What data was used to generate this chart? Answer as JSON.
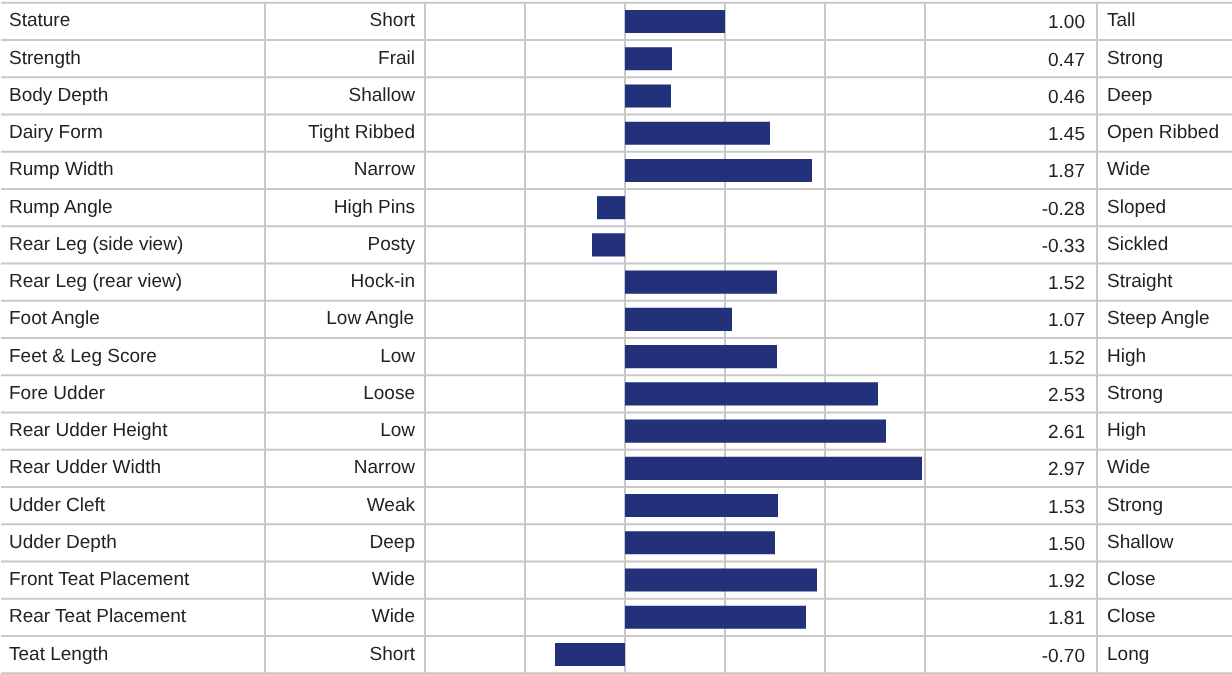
{
  "chart_data": {
    "type": "bar",
    "orientation": "horizontal",
    "categories": [
      "Stature",
      "Strength",
      "Body Depth",
      "Dairy Form",
      "Rump Width",
      "Rump Angle",
      "Rear Leg (side view)",
      "Rear Leg (rear view)",
      "Foot Angle",
      "Feet & Leg Score",
      "Fore Udder",
      "Rear Udder Height",
      "Rear Udder Width",
      "Udder Cleft",
      "Udder Depth",
      "Front Teat Placement",
      "Rear Teat Placement",
      "Teat Length"
    ],
    "values": [
      1.0,
      0.47,
      0.46,
      1.45,
      1.87,
      -0.28,
      -0.33,
      1.52,
      1.07,
      1.52,
      2.53,
      2.61,
      2.97,
      1.53,
      1.5,
      1.92,
      1.81,
      -0.7
    ],
    "value_labels": [
      "1.00",
      "0.47",
      "0.46",
      "1.45",
      "1.87",
      "-0.28",
      "-0.33",
      "1.52",
      "1.07",
      "1.52",
      "2.53",
      "2.61",
      "2.97",
      "1.53",
      "1.50",
      "1.92",
      "1.81",
      "-0.70"
    ],
    "color": "#23307a",
    "xlim": [
      -2,
      3
    ],
    "xticks": [
      {
        "value": -2,
        "label": null
      },
      {
        "value": -1,
        "label": null
      },
      {
        "value": 0,
        "label": null
      },
      {
        "value": 1,
        "label": null
      },
      {
        "value": 2,
        "label": null
      },
      {
        "value": 3,
        "label": null
      }
    ],
    "grid": "x",
    "annotations": [
      "Short",
      "Frail",
      "Shallow",
      "Tight Ribbed",
      "Narrow",
      "High Pins",
      "Posty",
      "Hock-in",
      "Low Angle",
      "Low",
      "Loose",
      "Low",
      "Narrow",
      "Weak",
      "Deep",
      "Wide",
      "Wide",
      "Short",
      "Tall",
      "Strong",
      "Deep",
      "Open Ribbed",
      "Wide",
      "Sloped",
      "Sickled",
      "Straight",
      "Steep Angle",
      "High",
      "Strong",
      "High",
      "Wide",
      "Strong",
      "Shallow",
      "Close",
      "Close",
      "Long"
    ]
  }
}
